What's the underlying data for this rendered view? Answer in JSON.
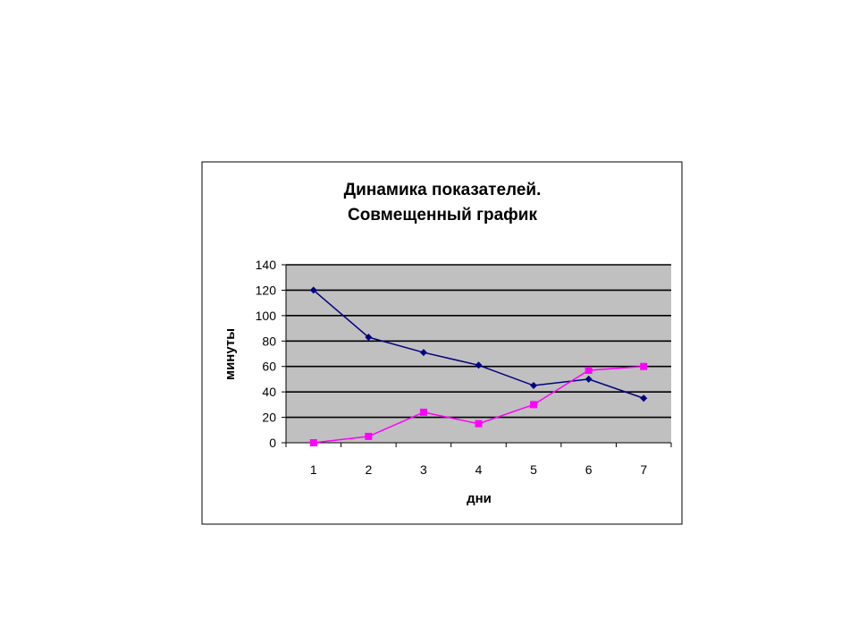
{
  "chart_data": {
    "type": "line",
    "title_lines": [
      "Динамика показателей.",
      "Совмещенный график"
    ],
    "xlabel": "дни",
    "ylabel": "минуты",
    "categories": [
      "1",
      "2",
      "3",
      "4",
      "5",
      "6",
      "7"
    ],
    "ylim": [
      0,
      140
    ],
    "yticks": [
      0,
      20,
      40,
      60,
      80,
      100,
      120,
      140
    ],
    "grid": true,
    "legend": "none",
    "plot_background": "#C0C0C0",
    "series": [
      {
        "values": [
          120,
          83,
          71,
          61,
          45,
          50,
          35
        ],
        "color": "#000080",
        "marker": "diamond"
      },
      {
        "values": [
          0,
          5,
          24,
          15,
          30,
          57,
          60
        ],
        "color": "#FF00FF",
        "marker": "square"
      }
    ]
  }
}
